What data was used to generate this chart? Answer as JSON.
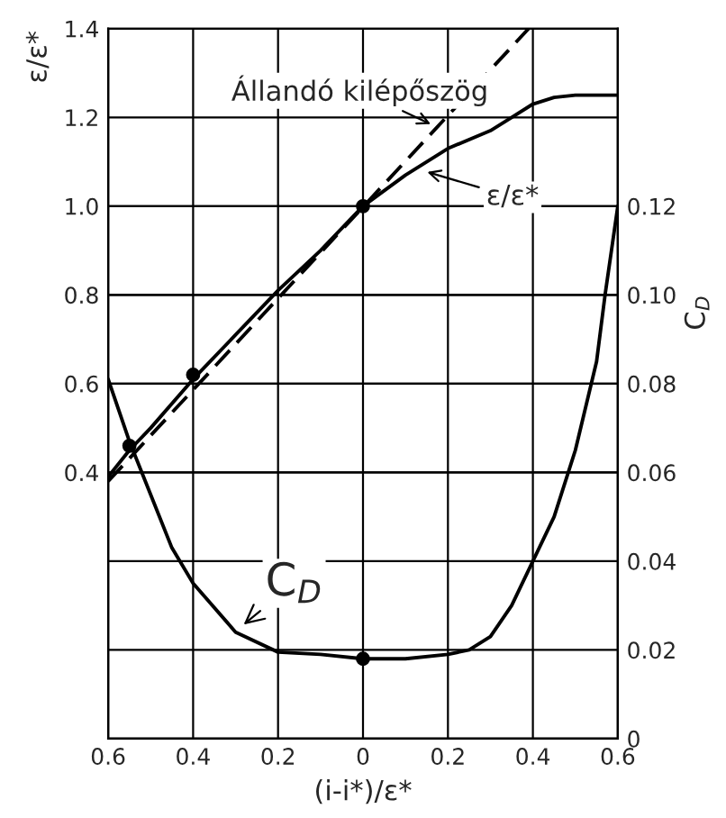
{
  "chart_data": {
    "type": "line",
    "xlabel": "(i-i*)/ε*",
    "ylabel": "ε/ε*",
    "y2label": "C$_{D}$",
    "xlim": [
      -0.6,
      0.6
    ],
    "xticks": [
      {
        "value": -0.6,
        "label": "0.6"
      },
      {
        "value": -0.4,
        "label": "0.4"
      },
      {
        "value": -0.2,
        "label": "0.2"
      },
      0,
      0.2,
      0.4,
      0.6
    ],
    "ylim": [
      -0.2,
      1.4
    ],
    "yticks": [
      0.4,
      0.6,
      0.8,
      {
        "value": 1.0,
        "label": "1.0"
      },
      1.2,
      1.4
    ],
    "y2lim": [
      0,
      0.16
    ],
    "y2ticks": [
      0,
      0.02,
      0.04,
      0.06,
      0.08,
      {
        "value": 0.1,
        "label": "0.10"
      },
      0.12
    ],
    "grid": true,
    "series": [
      {
        "color": "#000000",
        "line_style": "solid",
        "x": [
          -0.6,
          -0.55,
          -0.5,
          -0.4,
          -0.3,
          -0.2,
          -0.1,
          0,
          0.1,
          0.2,
          0.3,
          0.35,
          0.4,
          0.45,
          0.5,
          0.6
        ],
        "values": [
          0.39,
          0.45,
          0.5,
          0.61,
          0.71,
          0.81,
          0.9,
          1.0,
          1.07,
          1.13,
          1.17,
          1.2,
          1.23,
          1.245,
          1.25,
          1.25
        ]
      },
      {
        "color": "#000000",
        "line_style": "dashed",
        "x": [
          -0.6,
          0.39
        ],
        "values": [
          0.38,
          1.4
        ]
      },
      {
        "type": "scatter",
        "color": "#000000",
        "marker": "circle",
        "x": [
          -0.55,
          -0.4,
          0
        ],
        "values": [
          0.46,
          0.62,
          1.0
        ]
      },
      {
        "color": "#000000",
        "line_style": "solid",
        "axis": "y2",
        "x": [
          -0.6,
          -0.55,
          -0.5,
          -0.45,
          -0.4,
          -0.3,
          -0.2,
          -0.1,
          0,
          0.1,
          0.2,
          0.25,
          0.3,
          0.35,
          0.4,
          0.45,
          0.5,
          0.55,
          0.57,
          0.6
        ],
        "values": [
          0.081,
          0.067,
          0.055,
          0.043,
          0.035,
          0.024,
          0.0195,
          0.019,
          0.018,
          0.018,
          0.019,
          0.02,
          0.023,
          0.03,
          0.04,
          0.05,
          0.065,
          0.085,
          0.1,
          0.12
        ]
      },
      {
        "type": "scatter",
        "color": "#000000",
        "marker": "circle",
        "axis": "y2",
        "x": [
          0
        ],
        "values": [
          0.018
        ]
      }
    ],
    "annotations": [
      {
        "text": "Állandó kilépőszög",
        "x": 0.17,
        "y": 1.18
      },
      {
        "text": "ε/ε*",
        "x": 0.14,
        "y": 1.08
      },
      {
        "text": "C$_{D}$",
        "x": -0.29,
        "y": 0.05
      }
    ]
  }
}
